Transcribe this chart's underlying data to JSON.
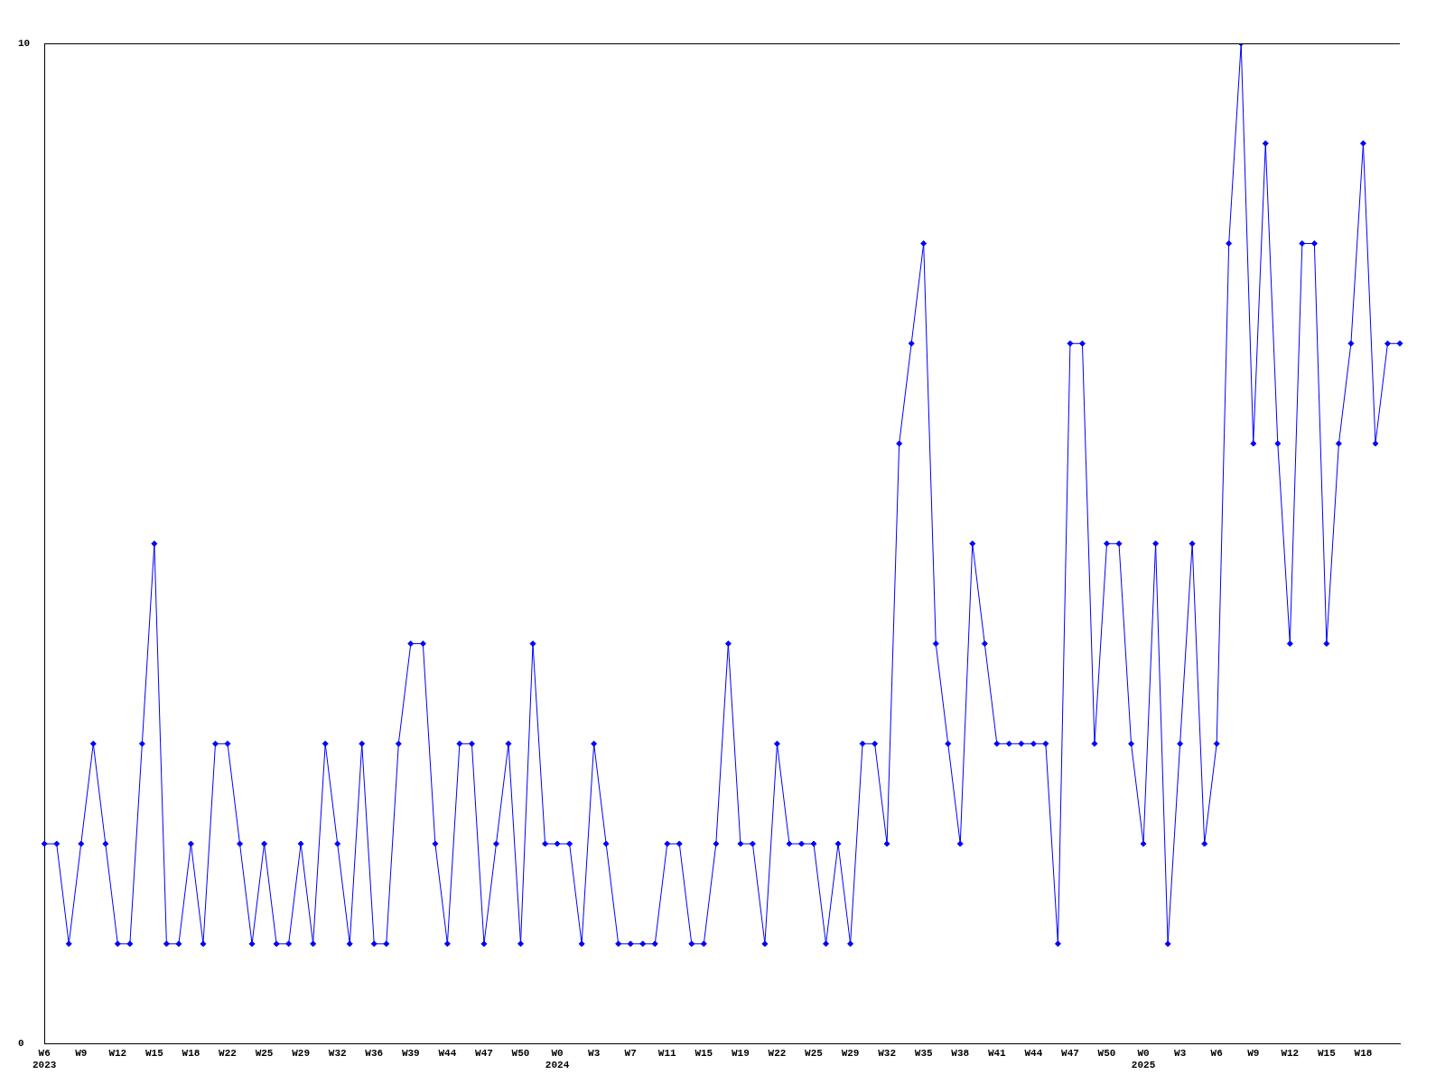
{
  "chart_data": {
    "type": "line",
    "categories": [
      "W6\n2023",
      null,
      null,
      "W9",
      null,
      null,
      "W12",
      null,
      null,
      "W15",
      null,
      null,
      "W18",
      null,
      null,
      "W22",
      null,
      null,
      "W25",
      null,
      null,
      "W29",
      null,
      null,
      "W32",
      null,
      null,
      "W36",
      null,
      null,
      "W39",
      null,
      null,
      "W44",
      null,
      null,
      "W47",
      null,
      null,
      "W50",
      null,
      null,
      "W0\n2024",
      null,
      null,
      "W3",
      null,
      null,
      "W7",
      null,
      null,
      "W11",
      null,
      null,
      "W15",
      null,
      null,
      "W19",
      null,
      null,
      "W22",
      null,
      null,
      "W25",
      null,
      null,
      "W29",
      null,
      null,
      "W32",
      null,
      null,
      "W35",
      null,
      null,
      "W38",
      null,
      null,
      "W41",
      null,
      null,
      "W44",
      null,
      null,
      "W47",
      null,
      null,
      "W50",
      null,
      null,
      "W0\n2025",
      null,
      null,
      "W3",
      null,
      null,
      "W6",
      null,
      null,
      "W9",
      null,
      null,
      "W12",
      null,
      null,
      "W15",
      null,
      null,
      "W18",
      null,
      null,
      null
    ],
    "series": [
      {
        "color": "#0000ff",
        "values": [
          2,
          2,
          1,
          2,
          3,
          2,
          1,
          1,
          3,
          5,
          1,
          1,
          2,
          1,
          3,
          3,
          2,
          1,
          2,
          1,
          1,
          2,
          1,
          3,
          2,
          1,
          3,
          1,
          1,
          3,
          4,
          4,
          2,
          1,
          3,
          3,
          1,
          2,
          3,
          1,
          4,
          2,
          2,
          2,
          1,
          3,
          2,
          1,
          1,
          1,
          1,
          2,
          2,
          1,
          1,
          2,
          4,
          2,
          2,
          1,
          3,
          2,
          2,
          2,
          1,
          2,
          1,
          3,
          3,
          2,
          6,
          7,
          8,
          4,
          3,
          2,
          5,
          4,
          3,
          3,
          3,
          3,
          3,
          1,
          7,
          7,
          3,
          5,
          5,
          3,
          2,
          5,
          1,
          3,
          5,
          2,
          3,
          8,
          10,
          6,
          9,
          6,
          4,
          8,
          8,
          4,
          6,
          7,
          9,
          6,
          7,
          7
        ]
      }
    ],
    "ylim": [
      0,
      10
    ],
    "yticks": [
      0,
      10
    ],
    "marker": "diamond",
    "line_style": "solid",
    "legend": false,
    "grid": false
  }
}
